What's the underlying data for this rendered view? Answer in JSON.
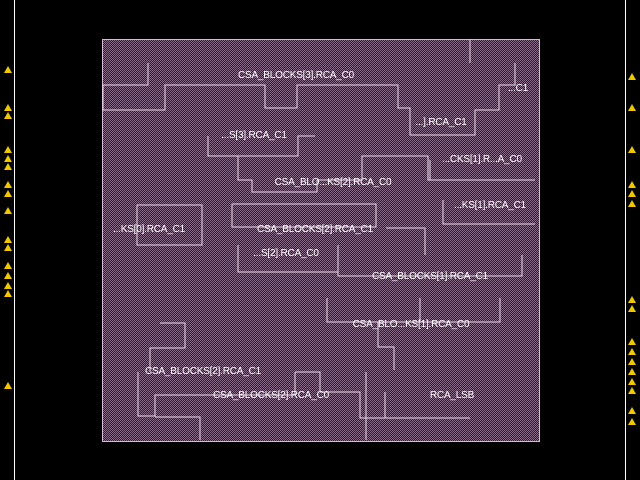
{
  "layout_view": {
    "colors": {
      "background": "#000000",
      "cell_fill": "#8a6e8a",
      "cell_outline": "#e8d8e8",
      "pin": "#f0c800",
      "label": "#ffffff"
    },
    "cell_labels": [
      "CSA_BLOCKS[3].RCA_C0",
      "...C1",
      "...S[3].RCA_C1",
      "...].RCA_C1",
      "...CKS[1].R...A_C0",
      "CSA_BLO...KS[2].RCA_C0",
      "...KS[1].RCA_C1",
      "...KS[0].RCA_C1",
      "CSA_BLOCKS[2].RCA_C1",
      "...S[2].RCA_C0",
      "CSA_BLOCKS[1].RCA_C1",
      "CSA_BLO...KS[1].RCA_C0",
      "CSA_BLOCKS[2].RCA_C1",
      "CSA_BLOCKS[2].RCA_C0",
      "RCA_LSB"
    ],
    "pin_marker": "pin-triangle-icon"
  }
}
